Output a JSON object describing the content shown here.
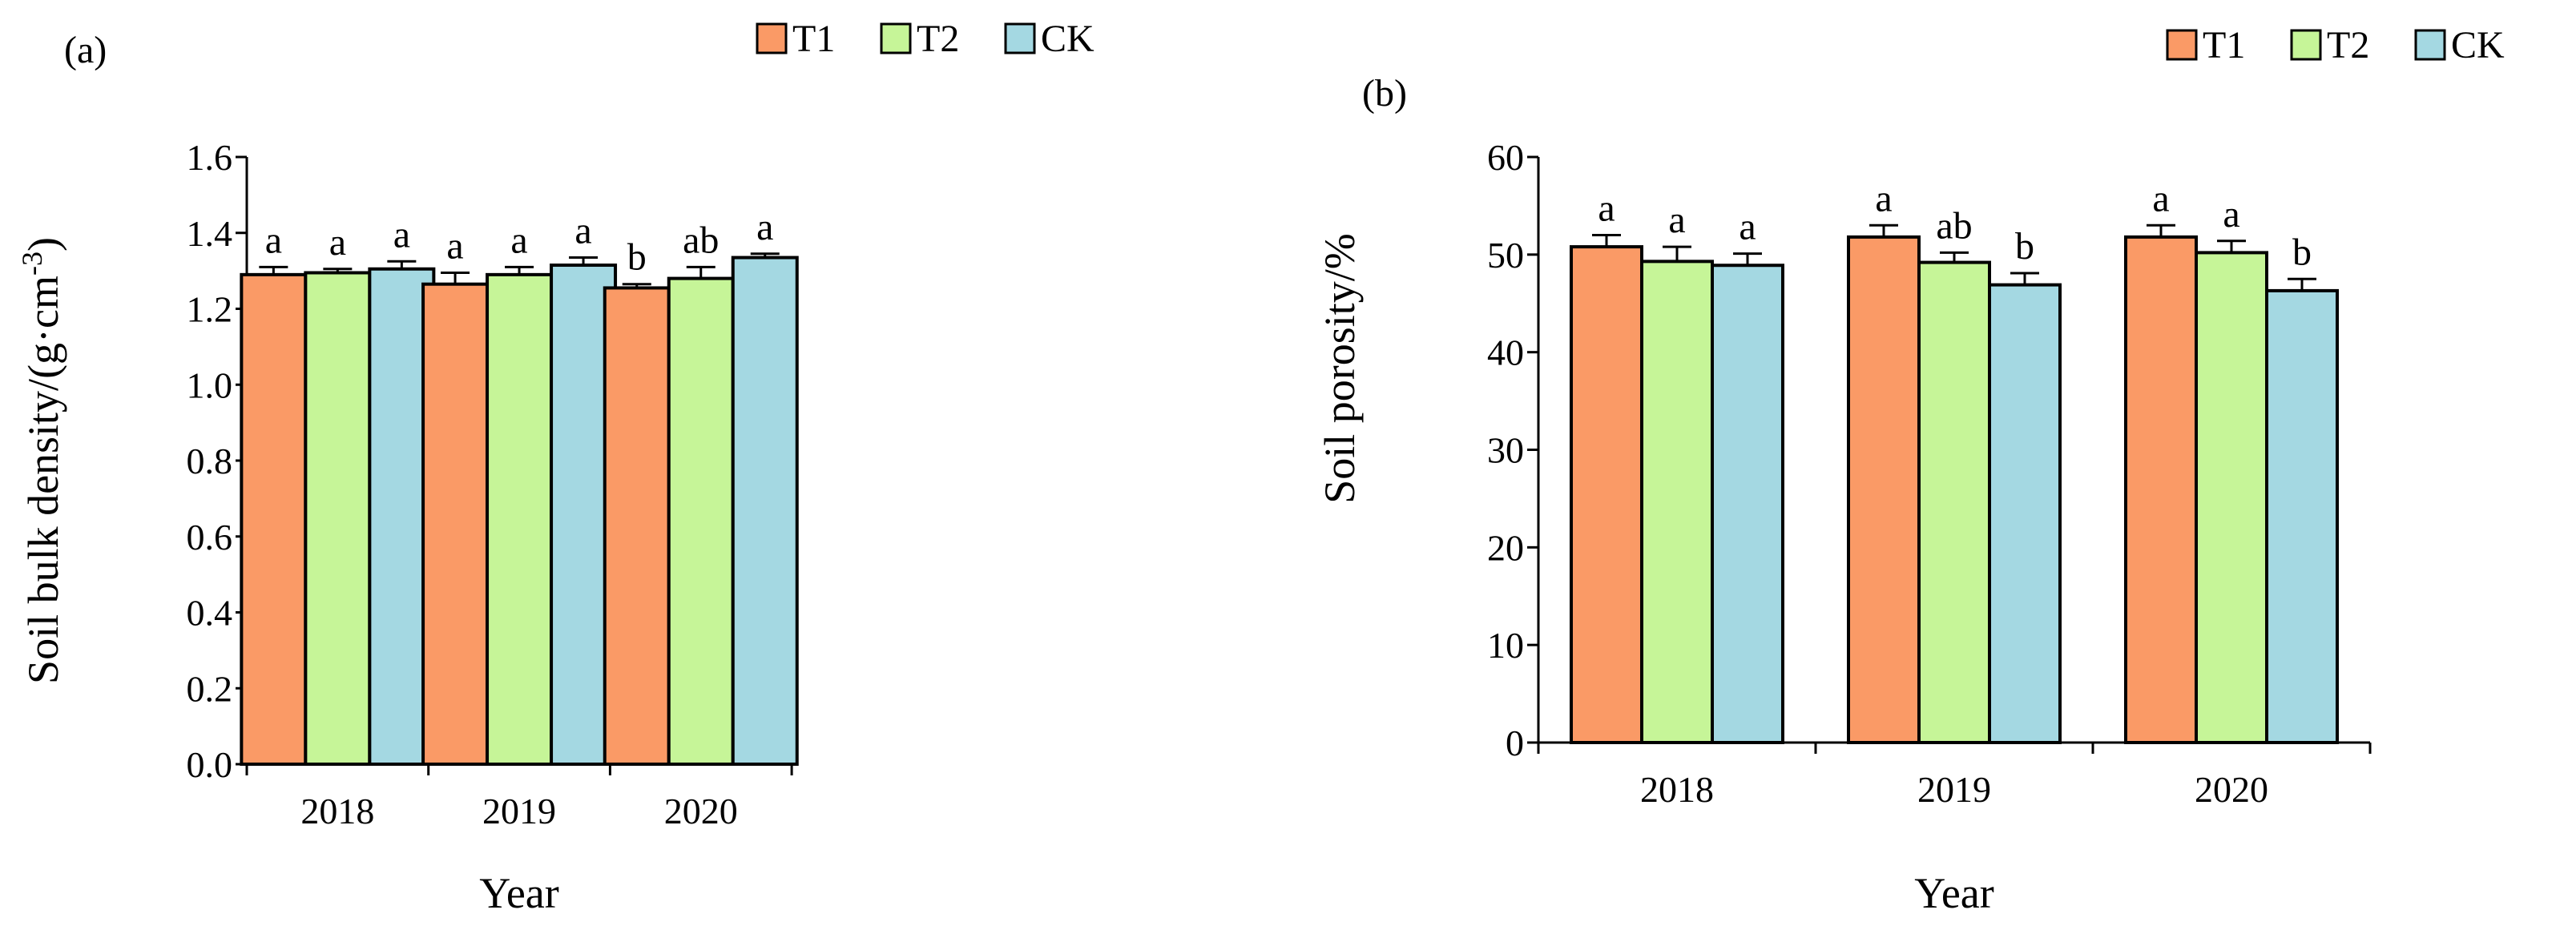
{
  "colors": {
    "T1": "#fa9a66",
    "T2": "#c6f598",
    "CK": "#a4d8e2"
  },
  "legend": [
    "T1",
    "T2",
    "CK"
  ],
  "chart_data": [
    {
      "panel": "(a)",
      "type": "bar",
      "title": "",
      "xlabel": "Year",
      "ylabel": "Soil bulk density/(g·cm",
      "ylabel_sup": "-3",
      "ylabel_tail": ")",
      "ylim": [
        0,
        1.6
      ],
      "yticks": [
        "0.0",
        "0.2",
        "0.4",
        "0.6",
        "0.8",
        "1.0",
        "1.2",
        "1.4",
        "1.6"
      ],
      "categories": [
        "2018",
        "2019",
        "2020"
      ],
      "series": [
        {
          "name": "T1",
          "values": [
            1.29,
            1.265,
            1.255
          ],
          "errors": [
            0.02,
            0.03,
            0.01
          ],
          "letters": [
            "a",
            "a",
            "b"
          ]
        },
        {
          "name": "T2",
          "values": [
            1.295,
            1.29,
            1.28
          ],
          "errors": [
            0.01,
            0.02,
            0.03
          ],
          "letters": [
            "a",
            "a",
            "ab"
          ]
        },
        {
          "name": "CK",
          "values": [
            1.305,
            1.315,
            1.335
          ],
          "errors": [
            0.02,
            0.02,
            0.01
          ],
          "letters": [
            "a",
            "a",
            "a"
          ]
        }
      ]
    },
    {
      "panel": "(b)",
      "type": "bar",
      "title": "",
      "xlabel": "Year",
      "ylabel": "Soil porosity/%",
      "ylabel_sup": "",
      "ylabel_tail": "",
      "ylim": [
        0,
        60
      ],
      "yticks": [
        "0",
        "10",
        "20",
        "30",
        "40",
        "50",
        "60"
      ],
      "categories": [
        "2018",
        "2019",
        "2020"
      ],
      "series": [
        {
          "name": "T1",
          "values": [
            50.8,
            51.8,
            51.8
          ],
          "errors": [
            1.2,
            1.2,
            1.2
          ],
          "letters": [
            "a",
            "a",
            "a"
          ]
        },
        {
          "name": "T2",
          "values": [
            49.3,
            49.2,
            50.2
          ],
          "errors": [
            1.5,
            1.0,
            1.2
          ],
          "letters": [
            "a",
            "ab",
            "a"
          ]
        },
        {
          "name": "CK",
          "values": [
            48.9,
            46.9,
            46.3
          ],
          "errors": [
            1.2,
            1.2,
            1.2
          ],
          "letters": [
            "a",
            "b",
            "b"
          ]
        }
      ]
    }
  ]
}
